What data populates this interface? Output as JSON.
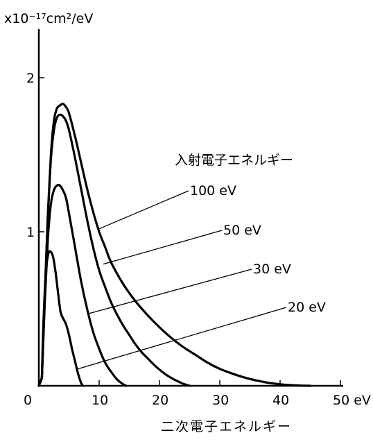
{
  "chart_data": {
    "type": "line",
    "ylabel": "x10⁻¹⁷cm²/eV",
    "xlabel": "二次電子エネルギー",
    "legend_title": "入射電子エネルギー",
    "x_ticks": [
      "0",
      "10",
      "20",
      "30",
      "40",
      "50 eV"
    ],
    "y_ticks": [
      "1",
      "2"
    ],
    "xlim": [
      0,
      50
    ],
    "ylim": [
      0,
      2.4
    ],
    "grid": false,
    "series": [
      {
        "name": "100 eV",
        "points": [
          [
            0.5,
            0.05
          ],
          [
            1,
            0.6
          ],
          [
            1.5,
            1.1
          ],
          [
            2,
            1.5
          ],
          [
            2.5,
            1.72
          ],
          [
            3,
            1.8
          ],
          [
            3.5,
            1.82
          ],
          [
            4,
            1.83
          ],
          [
            4.5,
            1.81
          ],
          [
            5,
            1.77
          ],
          [
            6,
            1.62
          ],
          [
            7,
            1.45
          ],
          [
            8,
            1.28
          ],
          [
            9,
            1.13
          ],
          [
            10,
            1.0
          ],
          [
            11,
            0.9
          ],
          [
            12,
            0.8
          ],
          [
            14,
            0.66
          ],
          [
            16,
            0.55
          ],
          [
            18,
            0.46
          ],
          [
            20,
            0.38
          ],
          [
            22,
            0.31
          ],
          [
            24,
            0.25
          ],
          [
            26,
            0.2
          ],
          [
            28,
            0.15
          ],
          [
            30,
            0.11
          ],
          [
            32,
            0.08
          ],
          [
            34,
            0.055
          ],
          [
            36,
            0.035
          ],
          [
            38,
            0.02
          ],
          [
            40,
            0.01
          ],
          [
            42,
            0.004
          ],
          [
            44,
            0.001
          ],
          [
            45,
            0
          ]
        ]
      },
      {
        "name": "50 eV",
        "points": [
          [
            0.5,
            0.05
          ],
          [
            1,
            0.6
          ],
          [
            1.5,
            1.1
          ],
          [
            2,
            1.47
          ],
          [
            2.5,
            1.66
          ],
          [
            3,
            1.74
          ],
          [
            3.5,
            1.76
          ],
          [
            4,
            1.75
          ],
          [
            4.5,
            1.72
          ],
          [
            5,
            1.66
          ],
          [
            6,
            1.48
          ],
          [
            7,
            1.28
          ],
          [
            8,
            1.08
          ],
          [
            9,
            0.9
          ],
          [
            10,
            0.75
          ],
          [
            11,
            0.64
          ],
          [
            12,
            0.54
          ],
          [
            13,
            0.46
          ],
          [
            14,
            0.39
          ],
          [
            15,
            0.33
          ],
          [
            16,
            0.27
          ],
          [
            17,
            0.22
          ],
          [
            18,
            0.18
          ],
          [
            19,
            0.14
          ],
          [
            20,
            0.105
          ],
          [
            21,
            0.075
          ],
          [
            22,
            0.05
          ],
          [
            23,
            0.03
          ],
          [
            24,
            0.012
          ],
          [
            25,
            0
          ]
        ]
      },
      {
        "name": "30 eV",
        "points": [
          [
            0.5,
            0.05
          ],
          [
            1,
            0.55
          ],
          [
            1.5,
            0.95
          ],
          [
            2,
            1.18
          ],
          [
            2.5,
            1.27
          ],
          [
            3,
            1.3
          ],
          [
            3.5,
            1.3
          ],
          [
            4,
            1.27
          ],
          [
            4.5,
            1.22
          ],
          [
            5,
            1.12
          ],
          [
            6,
            0.9
          ],
          [
            7,
            0.68
          ],
          [
            8,
            0.5
          ],
          [
            9,
            0.35
          ],
          [
            10,
            0.24
          ],
          [
            11,
            0.15
          ],
          [
            12,
            0.09
          ],
          [
            13,
            0.04
          ],
          [
            14,
            0.01
          ],
          [
            14.5,
            0
          ]
        ]
      },
      {
        "name": "20 eV",
        "points": [
          [
            0.5,
            0.05
          ],
          [
            0.8,
            0.45
          ],
          [
            1.2,
            0.75
          ],
          [
            1.6,
            0.86
          ],
          [
            2,
            0.87
          ],
          [
            2.4,
            0.83
          ],
          [
            2.8,
            0.73
          ],
          [
            3.2,
            0.6
          ],
          [
            3.6,
            0.48
          ],
          [
            4,
            0.44
          ],
          [
            4.5,
            0.4
          ],
          [
            5,
            0.33
          ],
          [
            5.5,
            0.24
          ],
          [
            6,
            0.16
          ],
          [
            6.5,
            0.08
          ],
          [
            7,
            0.02
          ],
          [
            7.3,
            0
          ]
        ]
      }
    ]
  }
}
